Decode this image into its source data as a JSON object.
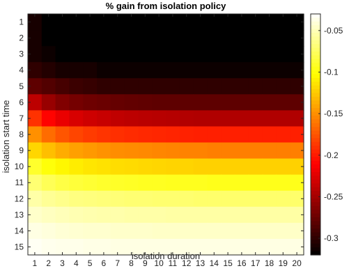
{
  "chart_data": {
    "type": "heatmap",
    "title": "% gain from isolation policy",
    "xlabel": "isolation duration",
    "ylabel": "isolation start time",
    "x": [
      1,
      2,
      3,
      4,
      5,
      6,
      7,
      8,
      9,
      10,
      11,
      12,
      13,
      14,
      15,
      16,
      17,
      18,
      19,
      20
    ],
    "y": [
      1,
      2,
      3,
      4,
      5,
      6,
      7,
      8,
      9,
      10,
      11,
      12,
      13,
      14,
      15
    ],
    "colormap": "hot",
    "clim": [
      -0.32,
      -0.03
    ],
    "colorbar_ticks": [
      -0.05,
      -0.1,
      -0.15,
      -0.2,
      -0.25,
      -0.3
    ],
    "colorbar_tick_labels": [
      "-0.05",
      "-0.1",
      "-0.15",
      "-0.2",
      "-0.25",
      "-0.3"
    ],
    "values": [
      [
        -0.31,
        -0.32,
        -0.32,
        -0.32,
        -0.32,
        -0.32,
        -0.32,
        -0.32,
        -0.32,
        -0.32,
        -0.32,
        -0.32,
        -0.32,
        -0.32,
        -0.32,
        -0.32,
        -0.32,
        -0.32,
        -0.32,
        -0.32
      ],
      [
        -0.31,
        -0.32,
        -0.32,
        -0.32,
        -0.32,
        -0.32,
        -0.32,
        -0.32,
        -0.32,
        -0.32,
        -0.32,
        -0.32,
        -0.32,
        -0.32,
        -0.32,
        -0.32,
        -0.32,
        -0.32,
        -0.32,
        -0.32
      ],
      [
        -0.31,
        -0.315,
        -0.32,
        -0.32,
        -0.32,
        -0.32,
        -0.32,
        -0.32,
        -0.32,
        -0.32,
        -0.32,
        -0.32,
        -0.32,
        -0.32,
        -0.32,
        -0.32,
        -0.32,
        -0.32,
        -0.32,
        -0.32
      ],
      [
        -0.3,
        -0.305,
        -0.31,
        -0.31,
        -0.31,
        -0.315,
        -0.315,
        -0.315,
        -0.315,
        -0.315,
        -0.315,
        -0.315,
        -0.315,
        -0.315,
        -0.315,
        -0.315,
        -0.315,
        -0.315,
        -0.315,
        -0.315
      ],
      [
        -0.28,
        -0.285,
        -0.29,
        -0.295,
        -0.297,
        -0.3,
        -0.3,
        -0.3,
        -0.3,
        -0.3,
        -0.3,
        -0.3,
        -0.3,
        -0.3,
        -0.3,
        -0.3,
        -0.3,
        -0.3,
        -0.3,
        -0.3
      ],
      [
        -0.24,
        -0.255,
        -0.265,
        -0.27,
        -0.273,
        -0.275,
        -0.277,
        -0.278,
        -0.279,
        -0.28,
        -0.28,
        -0.28,
        -0.28,
        -0.28,
        -0.28,
        -0.28,
        -0.28,
        -0.28,
        -0.28,
        -0.28
      ],
      [
        -0.19,
        -0.21,
        -0.22,
        -0.228,
        -0.232,
        -0.235,
        -0.238,
        -0.24,
        -0.241,
        -0.242,
        -0.243,
        -0.244,
        -0.245,
        -0.245,
        -0.245,
        -0.245,
        -0.245,
        -0.245,
        -0.245,
        -0.245
      ],
      [
        -0.15,
        -0.165,
        -0.175,
        -0.182,
        -0.186,
        -0.189,
        -0.191,
        -0.193,
        -0.194,
        -0.195,
        -0.196,
        -0.197,
        -0.198,
        -0.198,
        -0.198,
        -0.198,
        -0.198,
        -0.198,
        -0.198,
        -0.198
      ],
      [
        -0.12,
        -0.13,
        -0.138,
        -0.143,
        -0.146,
        -0.149,
        -0.151,
        -0.152,
        -0.153,
        -0.154,
        -0.155,
        -0.156,
        -0.156,
        -0.157,
        -0.157,
        -0.157,
        -0.157,
        -0.157,
        -0.157,
        -0.157
      ],
      [
        -0.09,
        -0.1,
        -0.106,
        -0.11,
        -0.113,
        -0.115,
        -0.117,
        -0.118,
        -0.119,
        -0.12,
        -0.121,
        -0.121,
        -0.122,
        -0.122,
        -0.122,
        -0.122,
        -0.122,
        -0.122,
        -0.122,
        -0.122
      ],
      [
        -0.07,
        -0.078,
        -0.083,
        -0.086,
        -0.088,
        -0.09,
        -0.091,
        -0.092,
        -0.093,
        -0.093,
        -0.094,
        -0.094,
        -0.094,
        -0.095,
        -0.095,
        -0.095,
        -0.095,
        -0.095,
        -0.095,
        -0.095
      ],
      [
        -0.055,
        -0.06,
        -0.063,
        -0.066,
        -0.067,
        -0.068,
        -0.069,
        -0.07,
        -0.07,
        -0.071,
        -0.071,
        -0.071,
        -0.072,
        -0.072,
        -0.072,
        -0.072,
        -0.072,
        -0.072,
        -0.072,
        -0.072
      ],
      [
        -0.045,
        -0.048,
        -0.05,
        -0.052,
        -0.053,
        -0.054,
        -0.054,
        -0.055,
        -0.055,
        -0.055,
        -0.056,
        -0.056,
        -0.056,
        -0.056,
        -0.056,
        -0.056,
        -0.056,
        -0.056,
        -0.056,
        -0.056
      ],
      [
        -0.038,
        -0.04,
        -0.042,
        -0.043,
        -0.044,
        -0.044,
        -0.045,
        -0.045,
        -0.045,
        -0.046,
        -0.046,
        -0.046,
        -0.046,
        -0.046,
        -0.046,
        -0.046,
        -0.046,
        -0.046,
        -0.046,
        -0.046
      ],
      [
        -0.033,
        -0.035,
        -0.036,
        -0.036,
        -0.037,
        -0.037,
        -0.038,
        -0.038,
        -0.038,
        -0.038,
        -0.038,
        -0.038,
        -0.038,
        -0.038,
        -0.038,
        -0.038,
        -0.038,
        -0.038,
        -0.038,
        -0.038
      ]
    ]
  }
}
